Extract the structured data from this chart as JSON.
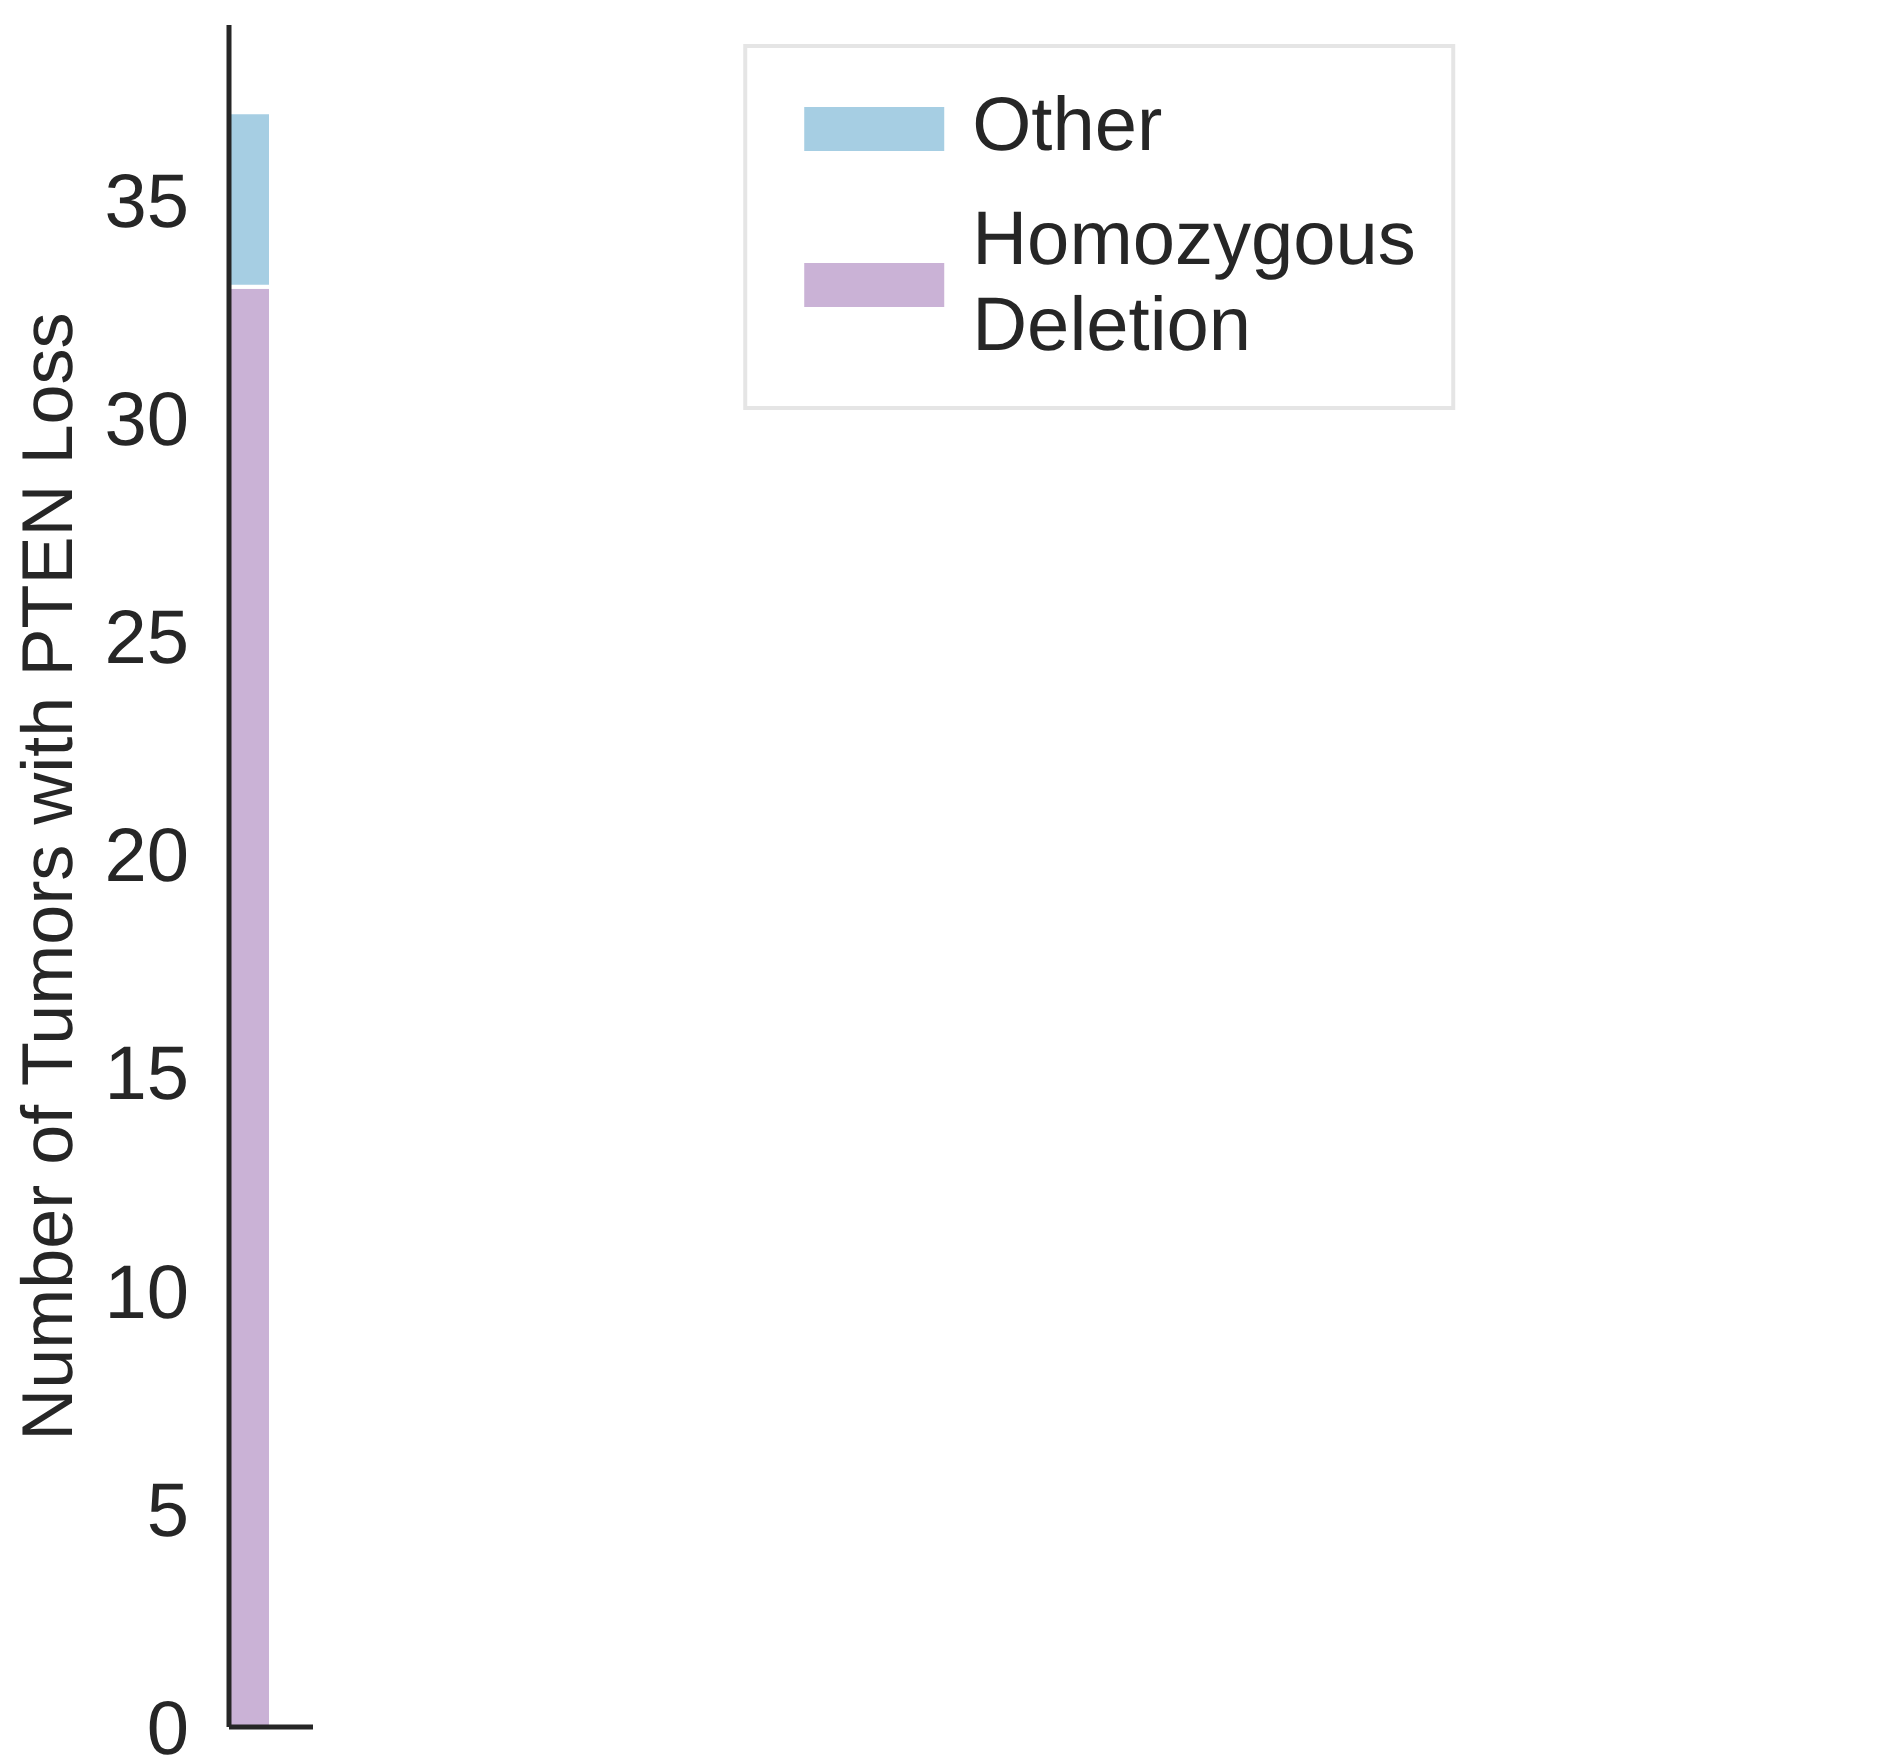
{
  "chart_data": {
    "type": "bar",
    "stacked": true,
    "ylabel": "Number of Tumors with PTEN Loss",
    "categories": [
      null
    ],
    "series": [
      {
        "name": "Homozygous Deletion",
        "color": "#cab2d6",
        "values": [
          33
        ]
      },
      {
        "name": "Other",
        "color": "#a6cee3",
        "values": [
          4
        ]
      }
    ],
    "ylim": [
      0,
      39
    ],
    "yticks": [
      0,
      5,
      10,
      15,
      20,
      25,
      30,
      35
    ],
    "legend": "top right",
    "tick_labels": "y"
  }
}
